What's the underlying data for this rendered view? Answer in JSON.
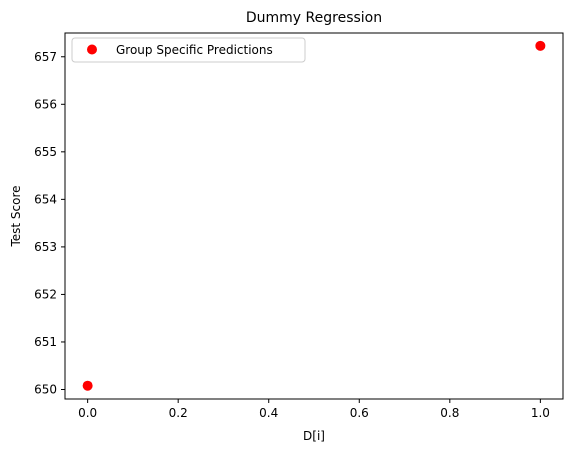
{
  "chart_data": {
    "type": "scatter",
    "title": "Dummy Regression",
    "xlabel": "D[i]",
    "ylabel": "Test Score",
    "xlim": [
      -0.05,
      1.05
    ],
    "ylim": [
      649.8,
      657.5
    ],
    "xticks": [
      0.0,
      0.2,
      0.4,
      0.6,
      0.8,
      1.0
    ],
    "xtick_labels": [
      "0.0",
      "0.2",
      "0.4",
      "0.6",
      "0.8",
      "1.0"
    ],
    "yticks": [
      650,
      651,
      652,
      653,
      654,
      655,
      656,
      657
    ],
    "ytick_labels": [
      "650",
      "651",
      "652",
      "653",
      "654",
      "655",
      "656",
      "657"
    ],
    "grid": false,
    "legend_position": "top-left",
    "series": [
      {
        "name": "Group Specific Predictions",
        "color": "#ff0000",
        "marker": "circle",
        "points": [
          {
            "x": 0.0,
            "y": 650.08
          },
          {
            "x": 1.0,
            "y": 657.23
          }
        ]
      }
    ]
  }
}
